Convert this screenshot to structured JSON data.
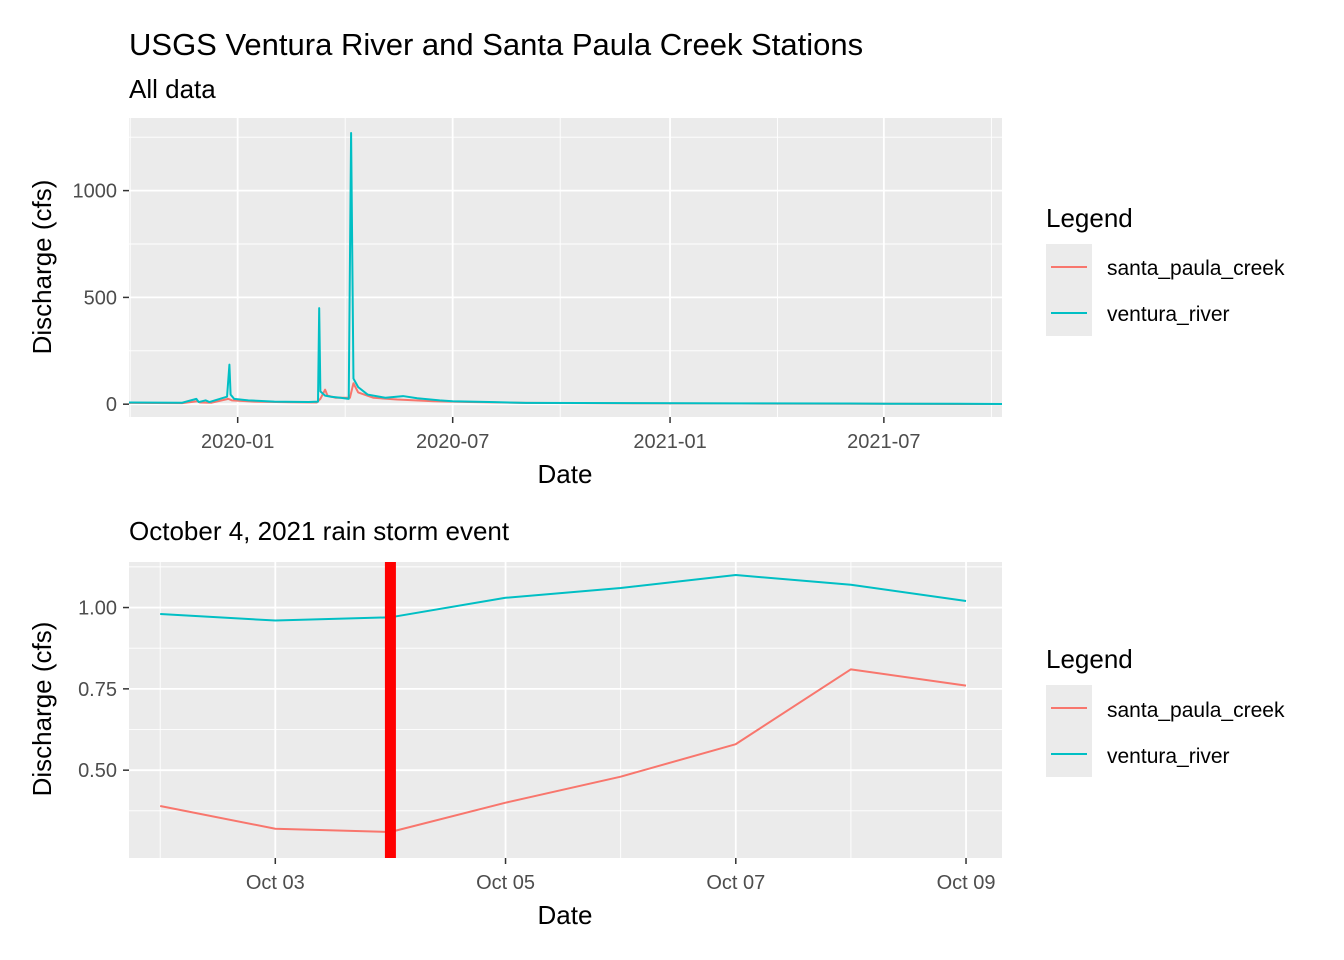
{
  "title": "USGS Ventura River and Santa Paula Creek Stations",
  "chart_data": [
    {
      "type": "line",
      "subtitle": "All data",
      "xlabel": "Date",
      "ylabel": "Discharge (cfs)",
      "x_axis": "date",
      "xlim": [
        "2019-10-01",
        "2021-10-09"
      ],
      "ylim": [
        -60,
        1340
      ],
      "x_ticks": [
        {
          "label": "2020-01",
          "value": "2020-01-01"
        },
        {
          "label": "2020-07",
          "value": "2020-07-01"
        },
        {
          "label": "2021-01",
          "value": "2021-01-01"
        },
        {
          "label": "2021-07",
          "value": "2021-07-01"
        }
      ],
      "y_ticks": [
        {
          "label": "0",
          "value": 0
        },
        {
          "label": "500",
          "value": 500
        },
        {
          "label": "1000",
          "value": 1000
        }
      ],
      "grid": true,
      "legend": {
        "title": "Legend",
        "position": "right"
      },
      "series": [
        {
          "name": "santa_paula_creek",
          "color": "#F8766D",
          "points": [
            [
              "2019-10-01",
              6
            ],
            [
              "2019-11-15",
              5
            ],
            [
              "2019-11-28",
              14
            ],
            [
              "2019-11-30",
              8
            ],
            [
              "2019-12-10",
              7
            ],
            [
              "2019-12-24",
              25
            ],
            [
              "2019-12-27",
              18
            ],
            [
              "2020-01-15",
              12
            ],
            [
              "2020-02-15",
              9
            ],
            [
              "2020-03-08",
              8
            ],
            [
              "2020-03-11",
              25
            ],
            [
              "2020-03-15",
              68
            ],
            [
              "2020-03-17",
              40
            ],
            [
              "2020-03-24",
              30
            ],
            [
              "2020-04-05",
              30
            ],
            [
              "2020-04-08",
              98
            ],
            [
              "2020-04-12",
              55
            ],
            [
              "2020-04-25",
              30
            ],
            [
              "2020-05-15",
              22
            ],
            [
              "2020-06-15",
              14
            ],
            [
              "2020-07-15",
              10
            ],
            [
              "2020-09-01",
              6
            ],
            [
              "2020-12-01",
              4
            ],
            [
              "2021-03-01",
              3
            ],
            [
              "2021-06-01",
              2
            ],
            [
              "2021-07-15",
              2
            ],
            [
              "2021-09-01",
              1
            ],
            [
              "2021-10-09",
              1
            ]
          ]
        },
        {
          "name": "ventura_river",
          "color": "#00BFC4",
          "points": [
            [
              "2019-10-01",
              8
            ],
            [
              "2019-11-15",
              7
            ],
            [
              "2019-11-27",
              25
            ],
            [
              "2019-11-29",
              10
            ],
            [
              "2019-12-05",
              18
            ],
            [
              "2019-12-08",
              10
            ],
            [
              "2019-12-23",
              35
            ],
            [
              "2019-12-25",
              185
            ],
            [
              "2019-12-26",
              45
            ],
            [
              "2019-12-29",
              25
            ],
            [
              "2020-01-10",
              18
            ],
            [
              "2020-02-01",
              12
            ],
            [
              "2020-03-01",
              10
            ],
            [
              "2020-03-09",
              12
            ],
            [
              "2020-03-10",
              450
            ],
            [
              "2020-03-11",
              60
            ],
            [
              "2020-03-15",
              40
            ],
            [
              "2020-03-20",
              35
            ],
            [
              "2020-03-28",
              30
            ],
            [
              "2020-04-04",
              25
            ],
            [
              "2020-04-06",
              1270
            ],
            [
              "2020-04-08",
              120
            ],
            [
              "2020-04-12",
              80
            ],
            [
              "2020-04-20",
              45
            ],
            [
              "2020-05-05",
              30
            ],
            [
              "2020-05-20",
              38
            ],
            [
              "2020-06-01",
              28
            ],
            [
              "2020-06-20",
              18
            ],
            [
              "2020-07-01",
              14
            ],
            [
              "2020-08-01",
              10
            ],
            [
              "2020-09-01",
              6
            ],
            [
              "2020-12-01",
              5
            ],
            [
              "2021-03-01",
              4
            ],
            [
              "2021-06-01",
              3
            ],
            [
              "2021-07-15",
              2
            ],
            [
              "2021-09-01",
              2
            ],
            [
              "2021-10-09",
              1
            ]
          ]
        }
      ]
    },
    {
      "type": "line",
      "subtitle": "October 4, 2021 rain storm event",
      "xlabel": "Date",
      "ylabel": "Discharge (cfs)",
      "x_axis": "date",
      "xlim": [
        "2021-10-01T17:30",
        "2021-10-09T07:30"
      ],
      "ylim": [
        0.23,
        1.14
      ],
      "x_ticks": [
        {
          "label": "Oct 03",
          "value": "2021-10-03"
        },
        {
          "label": "Oct 05",
          "value": "2021-10-05"
        },
        {
          "label": "Oct 07",
          "value": "2021-10-07"
        },
        {
          "label": "Oct 09",
          "value": "2021-10-09"
        }
      ],
      "y_ticks": [
        {
          "label": "0.50",
          "value": 0.5
        },
        {
          "label": "0.75",
          "value": 0.75
        },
        {
          "label": "1.00",
          "value": 1.0
        }
      ],
      "grid": true,
      "legend": {
        "title": "Legend",
        "position": "right"
      },
      "annotations": [
        {
          "type": "vline",
          "x": "2021-10-04",
          "color": "#FF0000"
        }
      ],
      "series": [
        {
          "name": "santa_paula_creek",
          "color": "#F8766D",
          "points": [
            [
              "2021-10-02",
              0.39
            ],
            [
              "2021-10-03",
              0.32
            ],
            [
              "2021-10-04",
              0.31
            ],
            [
              "2021-10-05",
              0.4
            ],
            [
              "2021-10-06",
              0.48
            ],
            [
              "2021-10-07",
              0.58
            ],
            [
              "2021-10-08",
              0.81
            ],
            [
              "2021-10-09",
              0.76
            ]
          ]
        },
        {
          "name": "ventura_river",
          "color": "#00BFC4",
          "points": [
            [
              "2021-10-02",
              0.98
            ],
            [
              "2021-10-03",
              0.96
            ],
            [
              "2021-10-04",
              0.97
            ],
            [
              "2021-10-05",
              1.03
            ],
            [
              "2021-10-06",
              1.06
            ],
            [
              "2021-10-07",
              1.1
            ],
            [
              "2021-10-08",
              1.07
            ],
            [
              "2021-10-09",
              1.02
            ]
          ]
        }
      ]
    }
  ]
}
